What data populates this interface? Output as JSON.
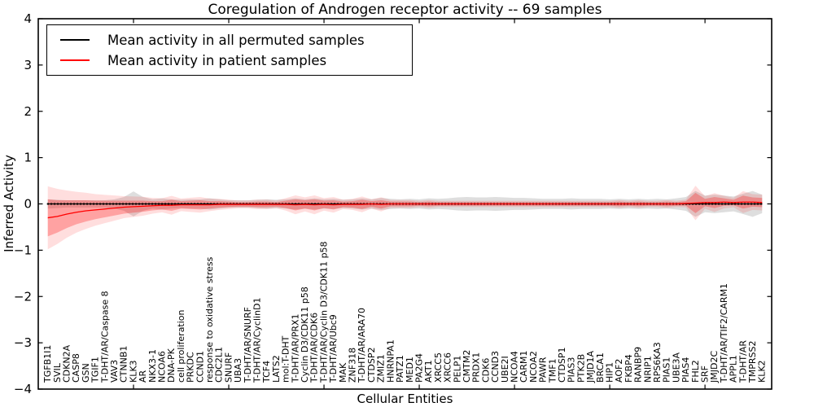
{
  "chart_data": {
    "type": "line",
    "title": "Coregulation of Androgen receptor activity -- 69 samples",
    "xlabel": "Cellular Entities",
    "ylabel": "Inferred Activity",
    "n_samples": 69,
    "ylim": [
      -4,
      4
    ],
    "yticks": [
      -4,
      -3,
      -2,
      -1,
      0,
      1,
      2,
      3,
      4
    ],
    "xlim": [
      0,
      77
    ],
    "xticks": [
      10,
      20,
      30,
      40,
      50,
      60,
      70
    ],
    "grid": false,
    "legend_position": "upper left",
    "categories": [
      "TGFB1I1",
      "SVIL",
      "CDKN2A",
      "CASP8",
      "GSN",
      "TGIF1",
      "T-DHT/AR/Caspase 8",
      "VAV3",
      "CTNNB1",
      "KLK3",
      "AR",
      "NKX3-1",
      "NCOA6",
      "DNA-PK",
      "cell proliferation",
      "PRKDC",
      "CCND1",
      "response to oxidative stress",
      "CDC2L1",
      "SNURF",
      "UBA3",
      "T-DHT/AR/SNURF",
      "T-DHT/AR/CyclinD1",
      "TCF4",
      "LATS2",
      "mol:T-DHT",
      "T-DHT/AR/PRX1",
      "Cyclin D3/CDK11 p58",
      "T-DHT/AR/CDK6",
      "T-DHT/AR/Cyclin D3/CDK11 p58",
      "T-DHT/AR/Ubc9",
      "MAK",
      "ZNF318",
      "T-DHT/AR/ARA70",
      "CTDSP2",
      "ZMIZ1",
      "HNRNPA1",
      "PATZ1",
      "MED1",
      "PA2G4",
      "AKT1",
      "XRCC5",
      "XRCC6",
      "PELP1",
      "CMTM2",
      "PRDX1",
      "CDK6",
      "CCND3",
      "UBE2I",
      "NCOA4",
      "CARM1",
      "NCOA2",
      "PAWR",
      "TMF1",
      "CTDSP1",
      "PIAS3",
      "PTK2B",
      "JMJD1A",
      "BRCA1",
      "HIP1",
      "AOF2",
      "FKBP4",
      "RANBP9",
      "NRIP1",
      "RPS6KA3",
      "PIAS1",
      "UBE3A",
      "PIAS4",
      "FHL2",
      "SRF",
      "JMJD2C",
      "T-DHT/AR/TIF2/CARM1",
      "APPL1",
      "T-DHT/AR",
      "TMPRSS2",
      "KLK2"
    ],
    "series": [
      {
        "name": "Mean activity in all permuted samples",
        "color": "#000000",
        "band_color": "rgba(0,0,0,0.13)",
        "values": [
          0,
          0,
          0,
          0,
          0,
          0,
          0,
          0,
          0,
          0,
          0,
          0,
          0,
          0,
          0,
          0,
          0,
          0,
          0,
          0,
          0,
          0,
          0,
          0,
          0,
          0,
          0,
          0,
          0,
          0,
          0,
          0,
          0,
          0,
          0,
          0,
          0,
          0,
          0,
          0,
          0,
          0,
          0,
          0,
          0,
          0,
          0,
          0,
          0,
          0,
          0,
          0,
          0,
          0,
          0,
          0,
          0,
          0,
          0,
          0,
          0,
          0,
          0,
          0,
          0,
          0,
          0,
          0,
          0,
          0,
          0,
          0,
          0,
          0,
          0,
          0
        ],
        "band": [
          0.1,
          0.09,
          0.08,
          0.08,
          0.08,
          0.08,
          0.08,
          0.1,
          0.15,
          0.27,
          0.15,
          0.1,
          0.12,
          0.1,
          0.09,
          0.1,
          0.1,
          0.12,
          0.1,
          0.08,
          0.08,
          0.08,
          0.09,
          0.1,
          0.09,
          0.1,
          0.12,
          0.1,
          0.12,
          0.1,
          0.11,
          0.09,
          0.1,
          0.12,
          0.1,
          0.13,
          0.11,
          0.1,
          0.11,
          0.1,
          0.12,
          0.11,
          0.12,
          0.14,
          0.15,
          0.14,
          0.14,
          0.15,
          0.14,
          0.13,
          0.13,
          0.12,
          0.11,
          0.11,
          0.11,
          0.12,
          0.11,
          0.11,
          0.11,
          0.1,
          0.11,
          0.1,
          0.11,
          0.1,
          0.11,
          0.1,
          0.12,
          0.15,
          0.28,
          0.18,
          0.2,
          0.18,
          0.16,
          0.22,
          0.28,
          0.2
        ]
      },
      {
        "name": "Mean activity in patient samples",
        "color": "#ff0000",
        "band_color": "rgba(255,0,0,0.27)",
        "band_outer_color": "rgba(255,0,0,0.13)",
        "values": [
          -0.3,
          -0.27,
          -0.22,
          -0.18,
          -0.15,
          -0.13,
          -0.11,
          -0.09,
          -0.07,
          -0.06,
          -0.05,
          -0.04,
          -0.03,
          -0.03,
          -0.02,
          -0.02,
          -0.02,
          -0.02,
          -0.01,
          -0.01,
          -0.01,
          -0.01,
          -0.01,
          -0.01,
          -0.01,
          -0.01,
          -0.02,
          -0.01,
          -0.02,
          -0.01,
          -0.02,
          -0.01,
          -0.01,
          -0.01,
          0.0,
          -0.01,
          0.0,
          0.0,
          0.0,
          0.0,
          0.0,
          0.0,
          0.0,
          0.0,
          0.0,
          0.0,
          0.0,
          0.0,
          0.0,
          0.0,
          0.0,
          0.0,
          0.0,
          0.0,
          0.0,
          0.0,
          0.0,
          0.0,
          0.0,
          0.0,
          0.0,
          0.0,
          0.0,
          0.0,
          0.0,
          0.0,
          0.0,
          0.01,
          0.02,
          0.03,
          0.03,
          0.04,
          0.03,
          0.04,
          0.04,
          0.03
        ],
        "band": [
          0.4,
          0.35,
          0.3,
          0.26,
          0.23,
          0.2,
          0.18,
          0.16,
          0.14,
          0.13,
          0.12,
          0.1,
          0.09,
          0.12,
          0.08,
          0.09,
          0.1,
          0.08,
          0.07,
          0.06,
          0.05,
          0.05,
          0.06,
          0.06,
          0.05,
          0.08,
          0.12,
          0.09,
          0.12,
          0.08,
          0.1,
          0.06,
          0.07,
          0.1,
          0.06,
          0.09,
          0.05,
          0.05,
          0.05,
          0.04,
          0.05,
          0.04,
          0.04,
          0.04,
          0.04,
          0.04,
          0.04,
          0.04,
          0.04,
          0.04,
          0.04,
          0.04,
          0.04,
          0.04,
          0.04,
          0.04,
          0.04,
          0.04,
          0.04,
          0.04,
          0.05,
          0.04,
          0.05,
          0.04,
          0.04,
          0.05,
          0.04,
          0.05,
          0.22,
          0.08,
          0.12,
          0.08,
          0.06,
          0.14,
          0.1,
          0.1
        ]
      }
    ]
  }
}
